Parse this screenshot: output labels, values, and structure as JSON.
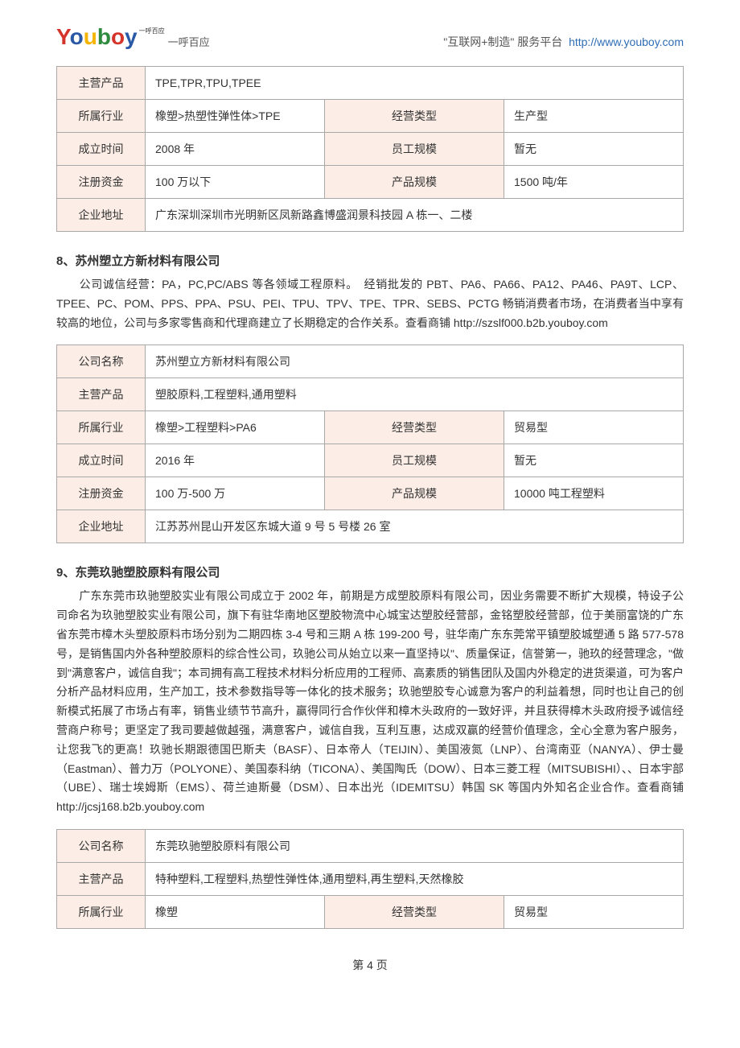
{
  "header": {
    "logo_tm": "一呼百应",
    "tagline": "一呼百应",
    "slogan": "\"互联网+制造\" 服务平台",
    "url": "http://www.youboy.com"
  },
  "table1": {
    "rows": [
      {
        "l1": "主营产品",
        "v1": "TPE,TPR,TPU,TPEE",
        "l2": "",
        "v2": ""
      },
      {
        "l1": "所属行业",
        "v1": "橡塑>热塑性弹性体>TPE",
        "l2": "经营类型",
        "v2": "生产型"
      },
      {
        "l1": "成立时间",
        "v1": "2008 年",
        "l2": "员工规模",
        "v2": "暂无"
      },
      {
        "l1": "注册资金",
        "v1": "100 万以下",
        "l2": "产品规模",
        "v2": "1500 吨/年"
      },
      {
        "l1": "企业地址",
        "v1": "广东深圳深圳市光明新区凤新路鑫博盛润景科技园 A 栋一、二楼",
        "l2": "",
        "v2": ""
      }
    ]
  },
  "section8": {
    "title": "8、苏州塑立方新材料有限公司",
    "desc": "公司诚信经营：PA，PC,PC/ABS 等各领域工程原料。　经销批发的 PBT、PA6、PA66、PA12、PA46、PA9T、LCP、TPEE、PC、POM、PPS、PPA、PSU、PEI、TPU、TPV、TPE、TPR、SEBS、PCTG 畅销消费者市场，在消费者当中享有较高的地位，公司与多家零售商和代理商建立了长期稳定的合作关系。查看商铺  http://szslf000.b2b.youboy.com"
  },
  "table2": {
    "rows": [
      {
        "l1": "公司名称",
        "v1": "苏州塑立方新材料有限公司",
        "l2": "",
        "v2": ""
      },
      {
        "l1": "主营产品",
        "v1": "塑胶原料,工程塑料,通用塑料",
        "l2": "",
        "v2": ""
      },
      {
        "l1": "所属行业",
        "v1": "橡塑>工程塑料>PA6",
        "l2": "经营类型",
        "v2": "贸易型"
      },
      {
        "l1": "成立时间",
        "v1": "2016 年",
        "l2": "员工规模",
        "v2": "暂无"
      },
      {
        "l1": "注册资金",
        "v1": "100 万-500 万",
        "l2": "产品规模",
        "v2": "10000 吨工程塑料"
      },
      {
        "l1": "企业地址",
        "v1": "江苏苏州昆山开发区东城大道 9 号 5 号楼 26 室",
        "l2": "",
        "v2": ""
      }
    ]
  },
  "section9": {
    "title": "9、东莞玖驰塑胶原料有限公司",
    "desc": "广东东莞市玖驰塑胶实业有限公司成立于 2002 年，前期是方成塑胶原料有限公司，因业务需要不断扩大规模，特设子公司命名为玖驰塑胶实业有限公司，旗下有驻华南地区塑胶物流中心城宝达塑胶经营部，金铭塑胶经营部，位于美丽富饶的广东省东莞市樟木头塑胶原料市场分别为二期四栋 3-4 号和三期 A 栋 199-200 号，驻华南广东东莞常平镇塑胶城塑通 5 路 577-578 号，是销售国内外各种塑胶原料的综合性公司，玖驰公司从始立以来一直坚持以\"、质量保证，信誉第一，驰玖的经营理念，\"做到\"满意客户，诚信自我\"；本司拥有高工程技术材料分析应用的工程师、高素质的销售团队及国内外稳定的进货渠道，可为客户分析产品材料应用，生产加工，技术参数指导等一体化的技术服务；玖驰塑胶专心诚意为客户的利益着想，同时也让自己的创新模式拓展了市场占有率，销售业绩节节高升，赢得同行合作伙伴和樟木头政府的一致好评，并且获得樟木头政府授予诚信经营商户称号；更坚定了我司要越做越强，满意客户，诚信自我，互利互惠，达成双赢的经营价值理念，全心全意为客户服务，让您我飞的更高！玖驰长期跟德国巴斯夫（BASF）、日本帝人（TEIJIN）、美国液氮（LNP）、台湾南亚（NANYA）、伊士曼（Eastman）、普力万（POLYONE）、美国泰科纳（TICONA）、美国陶氏（DOW）、日本三菱工程（MITSUBISHI）、、日本宇部（UBE）、瑞士埃姆斯（EMS）、荷兰迪斯曼（DSM）、日本出光（IDEMITSU）韩国 SK 等国内外知名企业合作。查看商铺  http://jcsj168.b2b.youboy.com"
  },
  "table3": {
    "rows": [
      {
        "l1": "公司名称",
        "v1": "东莞玖驰塑胶原料有限公司",
        "l2": "",
        "v2": ""
      },
      {
        "l1": "主营产品",
        "v1": "特种塑料,工程塑料,热塑性弹性体,通用塑料,再生塑料,天然橡胶",
        "l2": "",
        "v2": ""
      },
      {
        "l1": "所属行业",
        "v1": "橡塑",
        "l2": "经营类型",
        "v2": "贸易型"
      }
    ]
  },
  "footer": {
    "page": "第 4 页"
  }
}
